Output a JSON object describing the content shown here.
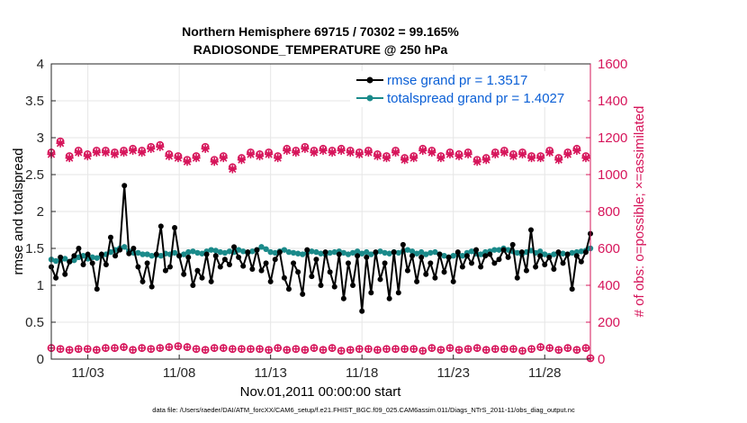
{
  "chart_data": {
    "type": "line",
    "title_line1": "Northern Hemisphere 69715 / 70302 = 99.165%",
    "title_line2": "RADIOSONDE_TEMPERATURE @ 250 hPa",
    "xlabel": "Nov.01,2011 00:00:00 start",
    "ylabel_left": "rmse and totalspread",
    "ylabel_right": "# of obs: o=possible; ×=assimilated",
    "footnote": "data file: /Users/raeder/DAI/ATM_forcXX/CAM6_setup/f.e21.FHIST_BGC.f09_025.CAM6assim.011/Diags_NTrS_2011-11/obs_diag_output.nc",
    "x_range": [
      0.5,
      30.0
    ],
    "ylim_left": [
      0,
      4
    ],
    "ylim_right": [
      0,
      1600
    ],
    "x_ticks": [
      2.5,
      7.5,
      12.5,
      17.5,
      22.5,
      27.5
    ],
    "x_tick_labels": [
      "11/03",
      "11/08",
      "11/13",
      "11/18",
      "11/23",
      "11/28"
    ],
    "y_ticks_left": [
      "0",
      "0.5",
      "1",
      "1.5",
      "2",
      "2.5",
      "3",
      "3.5",
      "4"
    ],
    "y_ticks_right": [
      "0",
      "200",
      "400",
      "600",
      "800",
      "1000",
      "1200",
      "1400",
      "1600"
    ],
    "grid": true,
    "legend_position": "top-right",
    "series": [
      {
        "name": "rmse grand pr = 1.3517",
        "color": "#000000",
        "axis": "left",
        "marker": "dot",
        "values": [
          1.25,
          1.1,
          1.38,
          1.15,
          1.32,
          1.4,
          1.5,
          1.28,
          1.42,
          1.3,
          0.95,
          1.42,
          1.28,
          1.65,
          1.4,
          1.48,
          2.35,
          1.43,
          1.5,
          1.25,
          1.05,
          1.3,
          0.98,
          1.42,
          1.8,
          1.2,
          1.25,
          1.78,
          1.4,
          1.15,
          1.38,
          1.0,
          1.2,
          1.1,
          1.42,
          1.05,
          1.4,
          1.25,
          1.35,
          1.28,
          1.52,
          1.38,
          1.26,
          1.45,
          1.22,
          1.48,
          1.2,
          1.3,
          1.05,
          1.35,
          1.45,
          1.1,
          0.95,
          1.3,
          1.18,
          0.88,
          1.48,
          1.12,
          1.35,
          1.0,
          1.45,
          1.18,
          0.98,
          1.42,
          0.82,
          1.3,
          1.0,
          1.4,
          0.65,
          1.38,
          0.9,
          1.45,
          1.08,
          1.3,
          0.82,
          1.45,
          0.9,
          1.55,
          1.2,
          1.4,
          1.05,
          1.38,
          1.15,
          1.3,
          1.1,
          1.42,
          1.18,
          1.38,
          1.05,
          1.45,
          1.25,
          1.4,
          1.3,
          1.48,
          1.25,
          1.4,
          1.42,
          1.3,
          1.35,
          1.48,
          1.38,
          1.55,
          1.1,
          1.45,
          1.2,
          1.75,
          1.25,
          1.4,
          1.28,
          1.38,
          1.22,
          1.45,
          1.3,
          1.42,
          0.95,
          1.4,
          1.32,
          1.45,
          1.7
        ]
      },
      {
        "name": "totalspread grand pr = 1.4027",
        "color": "#1a8a8a",
        "axis": "left",
        "marker": "dot",
        "values": [
          1.35,
          1.33,
          1.34,
          1.36,
          1.32,
          1.34,
          1.38,
          1.4,
          1.36,
          1.38,
          1.37,
          1.4,
          1.42,
          1.45,
          1.48,
          1.5,
          1.52,
          1.46,
          1.44,
          1.44,
          1.42,
          1.42,
          1.4,
          1.41,
          1.4,
          1.43,
          1.42,
          1.44,
          1.4,
          1.42,
          1.45,
          1.46,
          1.44,
          1.43,
          1.46,
          1.48,
          1.47,
          1.45,
          1.44,
          1.46,
          1.45,
          1.48,
          1.46,
          1.44,
          1.46,
          1.48,
          1.52,
          1.49,
          1.45,
          1.44,
          1.46,
          1.48,
          1.45,
          1.44,
          1.43,
          1.42,
          1.44,
          1.46,
          1.45,
          1.43,
          1.42,
          1.44,
          1.45,
          1.46,
          1.44,
          1.42,
          1.44,
          1.46,
          1.43,
          1.45,
          1.42,
          1.44,
          1.46,
          1.44,
          1.43,
          1.45,
          1.44,
          1.46,
          1.48,
          1.46,
          1.43,
          1.45,
          1.42,
          1.44,
          1.45,
          1.42,
          1.4,
          1.38,
          1.4,
          1.42,
          1.4,
          1.44,
          1.46,
          1.43,
          1.42,
          1.45,
          1.46,
          1.48,
          1.48,
          1.5,
          1.48,
          1.46,
          1.44,
          1.42,
          1.45,
          1.47,
          1.44,
          1.46,
          1.42,
          1.4,
          1.42,
          1.44,
          1.43,
          1.42,
          1.44,
          1.45,
          1.46,
          1.47,
          1.5
        ]
      }
    ],
    "obs_possible": {
      "name": "possible",
      "color": "#d6145a",
      "axis": "right",
      "marker": "o",
      "values": [
        1120,
        1110,
        1180,
        1060,
        1100,
        1090,
        1130,
        1120,
        1110,
        1140,
        1130,
        1160,
        1130,
        1150,
        1120,
        1160,
        1130,
        1100,
        1140,
        1120,
        1130,
        1090,
        1150,
        1120,
        1160,
        1130,
        1110,
        1150,
        1100,
        1120,
        1080,
        1110,
        1100,
        1120,
        1150,
        1110,
        1080,
        1140,
        1100,
        1070,
        1040,
        1060,
        1090,
        1110,
        1120,
        1130,
        1110,
        1140,
        1120,
        1130,
        1100,
        1120,
        1140,
        1110,
        1130,
        1160,
        1150,
        1140,
        1130,
        1150,
        1140,
        1120,
        1130,
        1160,
        1140,
        1150,
        1130,
        1140,
        1120,
        1150,
        1130,
        1120,
        1110,
        1130,
        1100,
        1120,
        1130,
        1110,
        1090,
        1120,
        1100,
        1130,
        1140,
        1160,
        1130,
        1120,
        1100,
        1130,
        1120,
        1150,
        1110,
        1090,
        1120,
        1100,
        1080,
        1100,
        1090,
        1110,
        1120,
        1140,
        1130,
        1100,
        1110,
        1090,
        1120,
        1080,
        1100,
        1120,
        1100,
        1120,
        1130,
        1100,
        1090,
        1110,
        1120,
        1100,
        1140,
        1120,
        1100,
        1110
      ],
      "assimilated": [
        1110,
        1100,
        1170,
        1050,
        1090,
        1080,
        1120,
        1110,
        1100,
        1130,
        1120,
        1150,
        1120,
        1140,
        1110,
        1150,
        1120,
        1090,
        1130,
        1110,
        1120,
        1080,
        1140,
        1110,
        1150,
        1120,
        1100,
        1140,
        1090,
        1110,
        1070,
        1100,
        1090,
        1110,
        1140,
        1100,
        1070,
        1130,
        1090,
        1060,
        1030,
        1050,
        1080,
        1100,
        1110,
        1120,
        1100,
        1130,
        1110,
        1120,
        1090,
        1110,
        1130,
        1100,
        1120,
        1150,
        1140,
        1130,
        1120,
        1140,
        1130,
        1110,
        1120,
        1150,
        1130,
        1140,
        1120,
        1130,
        1110,
        1140,
        1120,
        1110,
        1100,
        1120,
        1090,
        1110,
        1120,
        1100,
        1080,
        1110,
        1090,
        1120,
        1130,
        1150,
        1120,
        1110,
        1090,
        1120,
        1110,
        1140,
        1100,
        1080,
        1110,
        1090,
        1070,
        1090,
        1080,
        1100,
        1110,
        1130,
        1120,
        1090,
        1100,
        1080,
        1110,
        1070,
        1090,
        1110,
        1090,
        1110,
        1120,
        1090,
        1080,
        1100,
        1110,
        1090,
        1130,
        1110,
        1090,
        1100
      ]
    },
    "obs_low": {
      "name": "possible (low)",
      "color": "#d6145a",
      "axis": "right",
      "marker": "o",
      "values": [
        60,
        50,
        55,
        45,
        50,
        65,
        55,
        50,
        55,
        60,
        50,
        55,
        60,
        55,
        60,
        55,
        65,
        60,
        50,
        55,
        60,
        45,
        55,
        50,
        60,
        55,
        65,
        60,
        70,
        80,
        65,
        60,
        55,
        60,
        50,
        55,
        60,
        55,
        60,
        50,
        55,
        45,
        55,
        60,
        55,
        50,
        55,
        60,
        50,
        55,
        60,
        55,
        50,
        45,
        55,
        60,
        50,
        55,
        60,
        55,
        50,
        55,
        60,
        50,
        45,
        55,
        50,
        60,
        55,
        50,
        55,
        60,
        50,
        45,
        55,
        60,
        55,
        50,
        55,
        60,
        55,
        50,
        45,
        55,
        60,
        55,
        50,
        55,
        60,
        55,
        50,
        45,
        55,
        50,
        60,
        55,
        50,
        45,
        55,
        60,
        55,
        50,
        55,
        60,
        45,
        50,
        55,
        60,
        65,
        55,
        60,
        55,
        50,
        55,
        60,
        55,
        50,
        55,
        60,
        5
      ]
    }
  }
}
